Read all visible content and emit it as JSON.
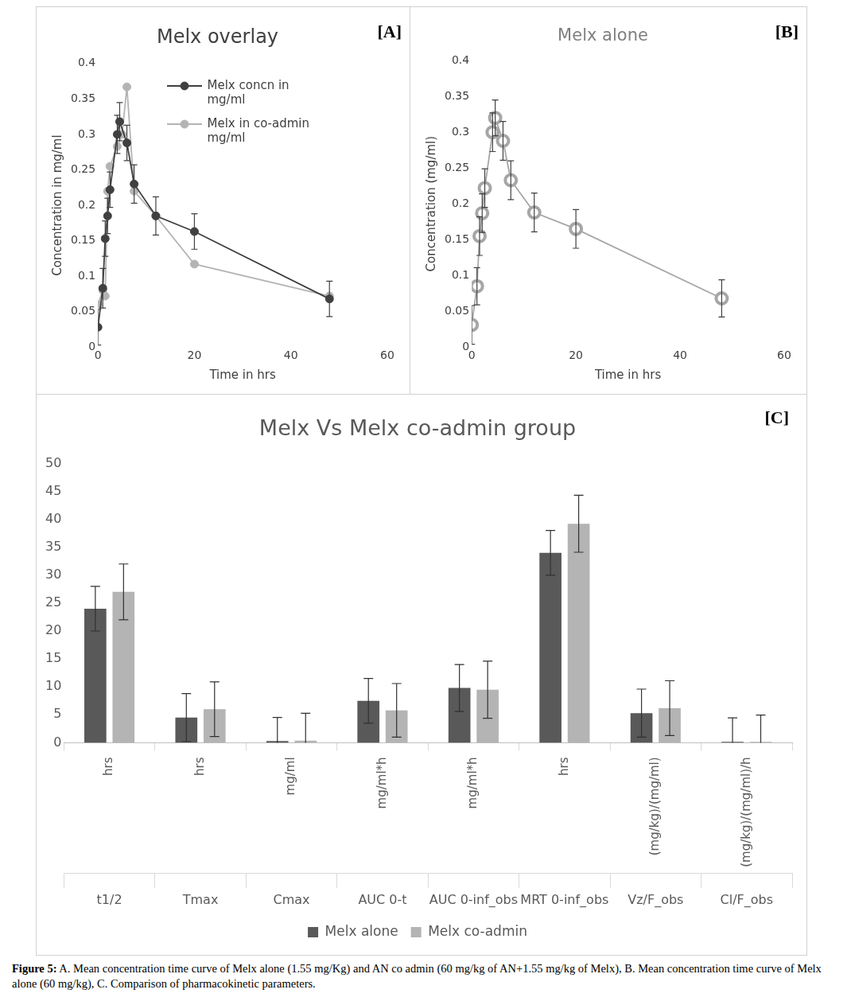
{
  "caption": {
    "label": "Figure 5:",
    "text": "A. Mean concentration time curve of Melx alone (1.55 mg/Kg) and AN co admin (60 mg/kg of AN+1.55 mg/kg of Melx), B. Mean concentration time curve of Melx alone (60 mg/kg), C. Comparison of pharmacokinetic parameters."
  },
  "chart_data": [
    {
      "panel": "[A]",
      "type": "line",
      "title": "Melx overlay",
      "x_label": "Time in hrs",
      "y_label": "Concentration in mg/ml",
      "xlim": [
        0,
        60
      ],
      "xticks": [
        0,
        20,
        40,
        60
      ],
      "ylim": [
        0,
        0.4
      ],
      "yticks": [
        0,
        0.05,
        0.1,
        0.15,
        0.2,
        0.25,
        0.3,
        0.35,
        0.4
      ],
      "grid": false,
      "legend": "upper right",
      "series": [
        {
          "name": "Melx concn in mg/ml",
          "color": "#404040",
          "marker": "circle",
          "x": [
            0,
            1,
            1.5,
            2,
            2.5,
            4,
            4.5,
            6,
            7.5,
            12,
            20,
            48
          ],
          "values": [
            0.028,
            0.083,
            0.153,
            0.185,
            0.222,
            0.3,
            0.318,
            0.288,
            0.23,
            0.185,
            0.163,
            0.068
          ],
          "errors": [
            0.025,
            0.028,
            0.025,
            0.025,
            0.025,
            0.027,
            0.027,
            0.025,
            0.027,
            0.027,
            0.025,
            0.025
          ]
        },
        {
          "name": "Melx in co-admin mg/ml",
          "color": "#b4b4b4",
          "marker": "circle",
          "x": [
            0,
            1,
            1.5,
            2,
            2.5,
            4,
            5,
            6,
            7.5,
            12,
            20,
            48
          ],
          "values": [
            0.06,
            0.08,
            0.072,
            0.22,
            0.255,
            0.283,
            0.3,
            0.367,
            0.22,
            0.185,
            0.117,
            0.072
          ]
        }
      ]
    },
    {
      "panel": "[B]",
      "type": "line",
      "title": "Melx alone",
      "x_label": "Time in hrs",
      "y_label": "Concentration (mg/ml)",
      "xlim": [
        0,
        60
      ],
      "xticks": [
        0,
        20,
        40,
        60
      ],
      "ylim": [
        0,
        0.4
      ],
      "yticks": [
        0,
        0.05,
        0.1,
        0.15,
        0.2,
        0.25,
        0.3,
        0.35,
        0.4
      ],
      "grid": false,
      "color": "#a6a6a6",
      "marker": "ring",
      "x": [
        0,
        1,
        1.5,
        2,
        2.5,
        4,
        4.5,
        6,
        7.5,
        12,
        20,
        48
      ],
      "values": [
        0.031,
        0.085,
        0.155,
        0.187,
        0.222,
        0.3,
        0.32,
        0.288,
        0.233,
        0.188,
        0.165,
        0.068
      ],
      "errors": [
        0.027,
        0.026,
        0.027,
        0.027,
        0.027,
        0.027,
        0.025,
        0.027,
        0.027,
        0.027,
        0.027,
        0.026
      ]
    },
    {
      "panel": "[C]",
      "type": "bar",
      "title": "Melx Vs Melx co-admin group",
      "categories": [
        "t1/2",
        "Tmax",
        "Cmax",
        "AUC 0-t",
        "AUC 0-inf_obs",
        "MRT 0-inf_obs",
        "Vz/F_obs",
        "Cl/F_obs"
      ],
      "category_units": [
        "hrs",
        "hrs",
        "mg/ml",
        "mg/ml*h",
        "mg/ml*h",
        "hrs",
        "(mg/kg)/(mg/ml)",
        "(mg/kg)/(mg/ml)/h"
      ],
      "ylim": [
        0,
        50
      ],
      "yticks": [
        0,
        5,
        10,
        15,
        20,
        25,
        30,
        35,
        40,
        45,
        50
      ],
      "grid": false,
      "legend": "bottom",
      "series": [
        {
          "name": "Melx alone",
          "color": "#595959",
          "values": [
            24,
            4.5,
            0.32,
            7.5,
            9.8,
            34,
            5.3,
            0.16
          ],
          "errors": [
            4,
            4.3,
            4.2,
            4,
            4.2,
            4,
            4.3,
            4.3
          ]
        },
        {
          "name": "Melx co-admin",
          "color": "#b4b4b4",
          "values": [
            27,
            6,
            0.37,
            5.8,
            9.5,
            39.2,
            6.2,
            0.16
          ],
          "errors": [
            5,
            4.9,
            4.9,
            4.8,
            5.1,
            5.1,
            4.9,
            4.8
          ]
        }
      ]
    }
  ]
}
